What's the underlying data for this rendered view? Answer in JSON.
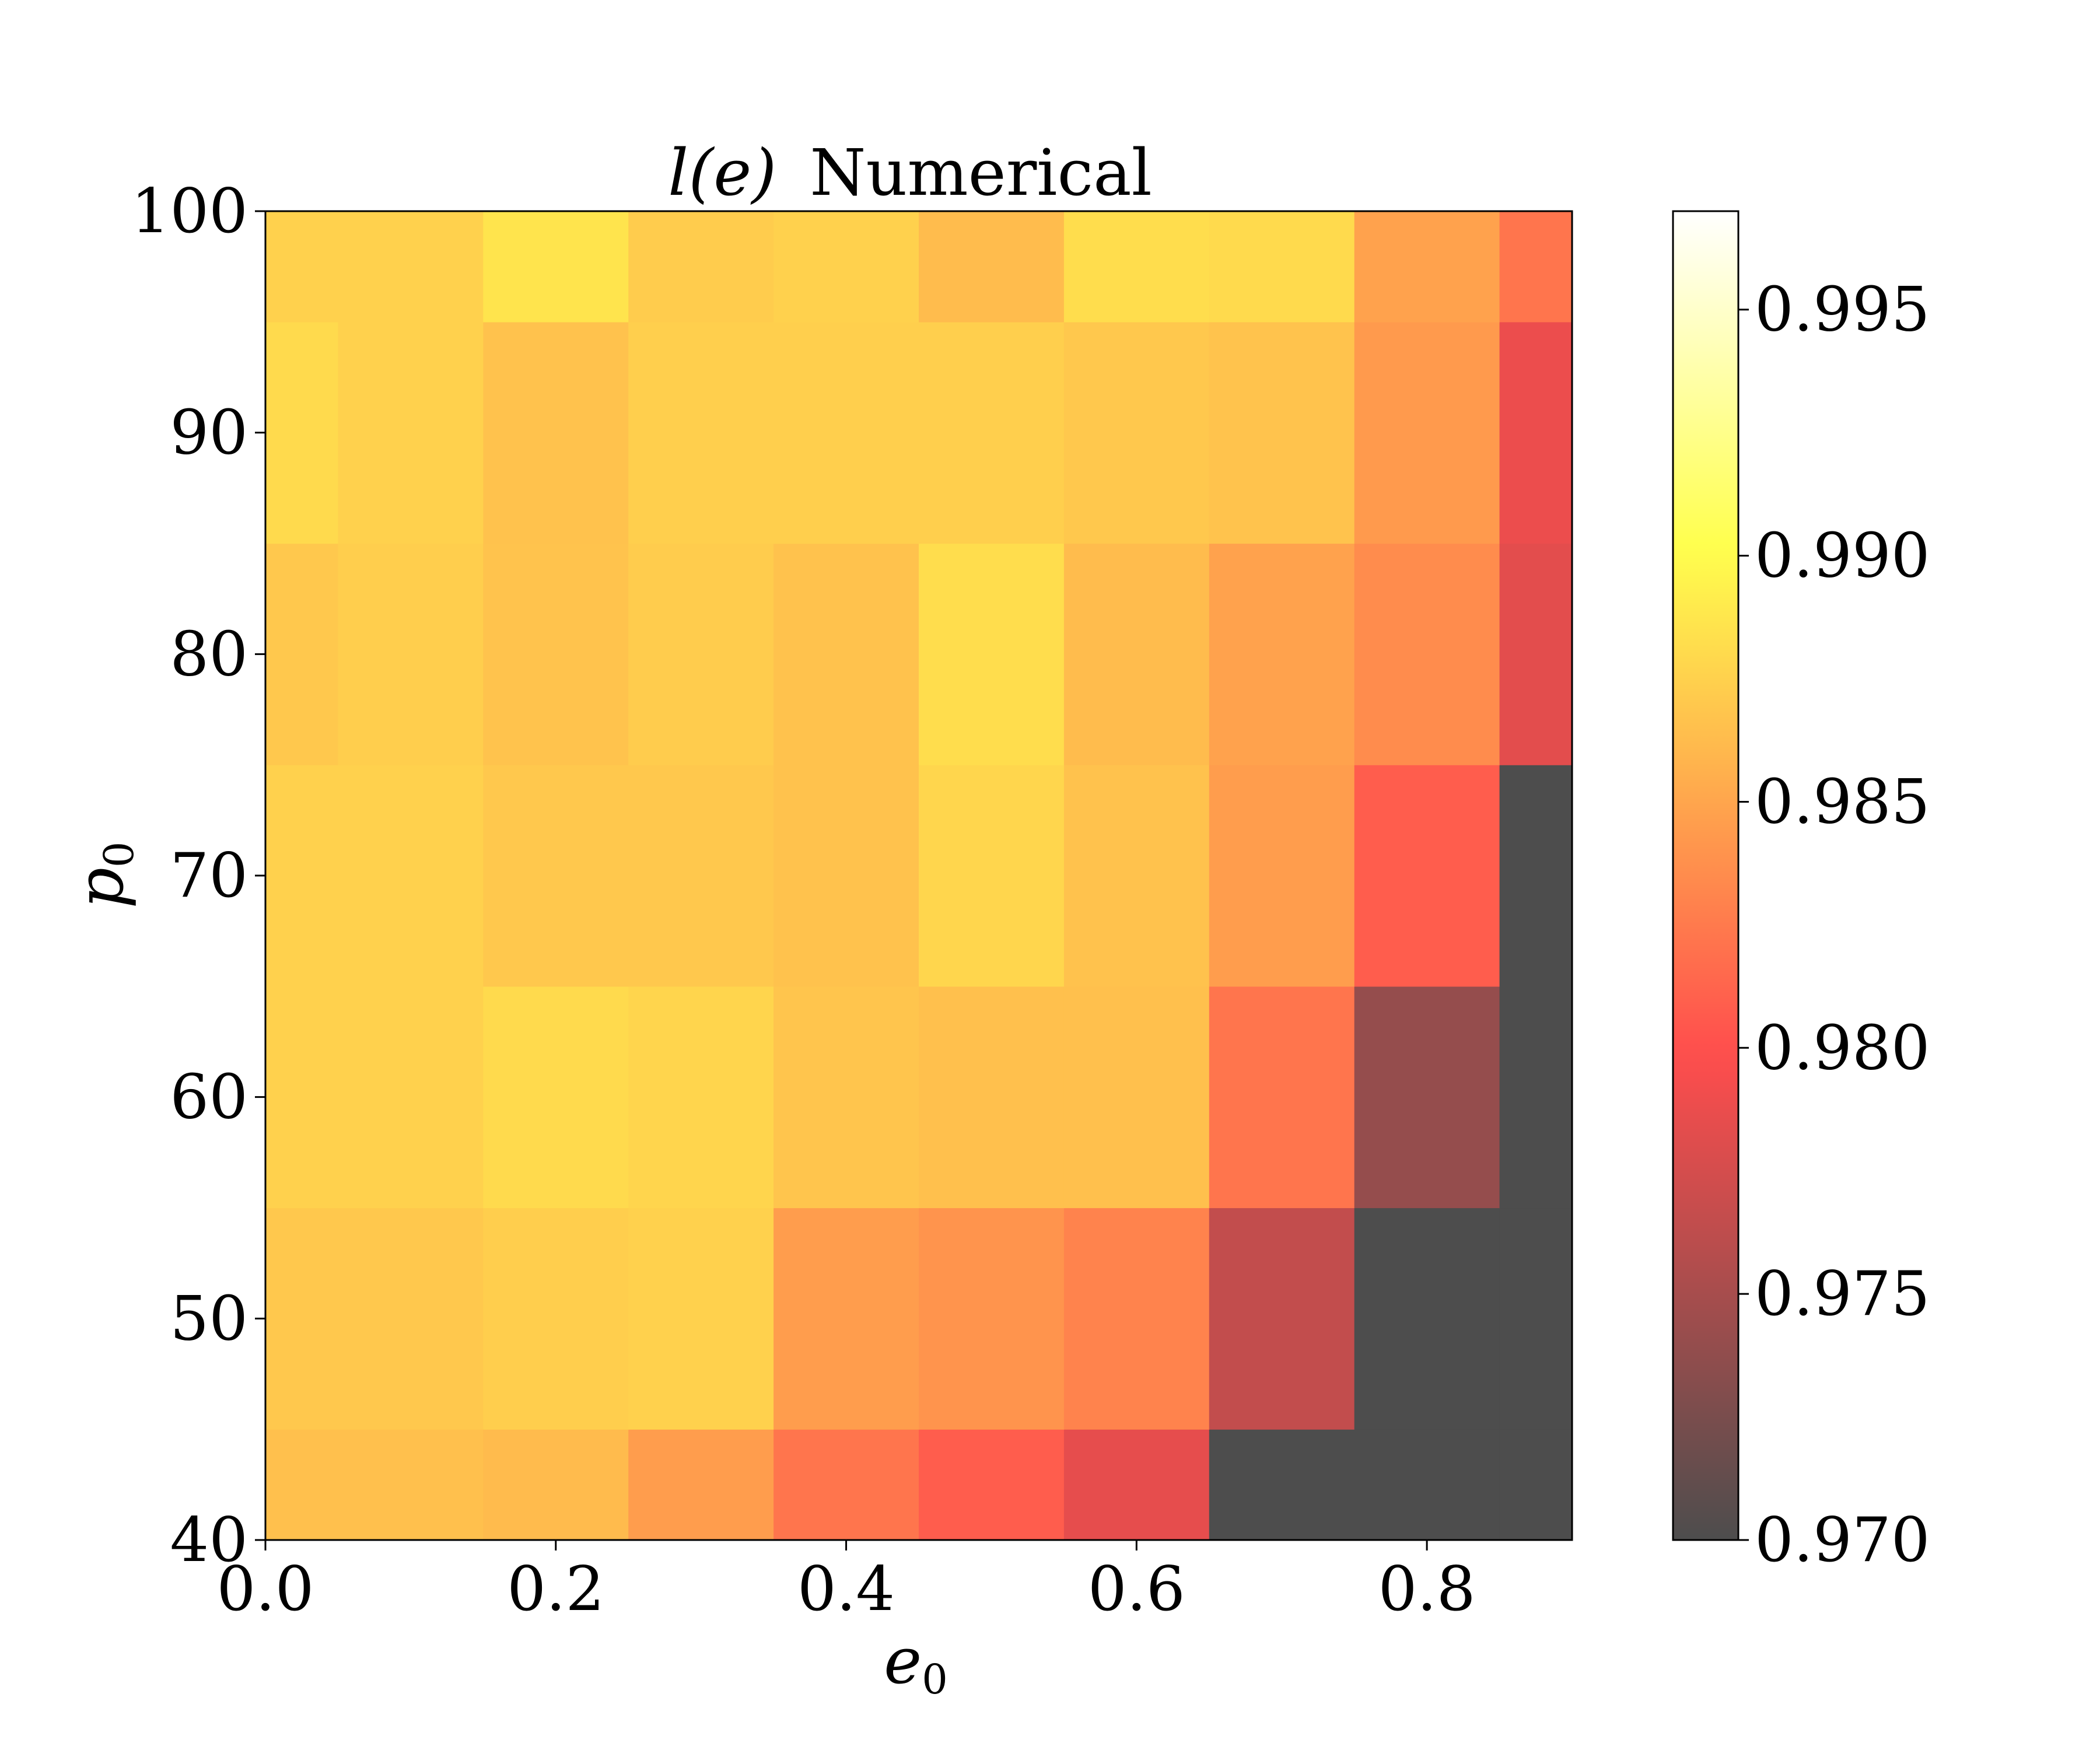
{
  "chart_data": {
    "type": "heatmap",
    "title": "l(e) Numerical",
    "title_math": "l(e)",
    "title_text": "Numerical",
    "xlabel": "e",
    "xlabel_sub": "0",
    "ylabel": "p",
    "ylabel_sub": "0",
    "x_centers": [
      0.0,
      0.1,
      0.2,
      0.3,
      0.4,
      0.5,
      0.6,
      0.7,
      0.8,
      0.9
    ],
    "y_edges": [
      40,
      45,
      55,
      65,
      75,
      85,
      95,
      100
    ],
    "xlim": [
      0.0,
      0.9
    ],
    "ylim": [
      40,
      100
    ],
    "x_ticks": [
      "0.0",
      "0.2",
      "0.4",
      "0.6",
      "0.8"
    ],
    "y_ticks": [
      "40",
      "50",
      "60",
      "70",
      "80",
      "90",
      "100"
    ],
    "colorbar": {
      "min": 0.97,
      "max": 0.997,
      "ticks": [
        "0.970",
        "0.975",
        "0.980",
        "0.985",
        "0.990",
        "0.995"
      ],
      "colormap": "hot",
      "alpha": 0.7
    },
    "values": [
      [
        0.9865,
        0.9865,
        0.9862,
        0.9845,
        0.9822,
        0.9808,
        0.9785,
        0.97,
        0.97,
        0.97
      ],
      [
        0.987,
        0.987,
        0.9873,
        0.9875,
        0.9845,
        0.984,
        0.983,
        0.9765,
        0.97,
        0.97
      ],
      [
        0.9875,
        0.9875,
        0.988,
        0.9877,
        0.9868,
        0.9865,
        0.9865,
        0.9822,
        0.974,
        0.97
      ],
      [
        0.9875,
        0.9875,
        0.987,
        0.987,
        0.9866,
        0.9878,
        0.9866,
        0.9845,
        0.9808,
        0.97
      ],
      [
        0.987,
        0.9873,
        0.9867,
        0.9872,
        0.9866,
        0.9882,
        0.9863,
        0.9848,
        0.9835,
        0.9783
      ],
      [
        0.988,
        0.9875,
        0.9866,
        0.9874,
        0.9874,
        0.9874,
        0.987,
        0.9867,
        0.9843,
        0.9788
      ],
      [
        0.9875,
        0.9875,
        0.9886,
        0.9872,
        0.9875,
        0.9863,
        0.9882,
        0.988,
        0.9848,
        0.9822
      ]
    ]
  }
}
